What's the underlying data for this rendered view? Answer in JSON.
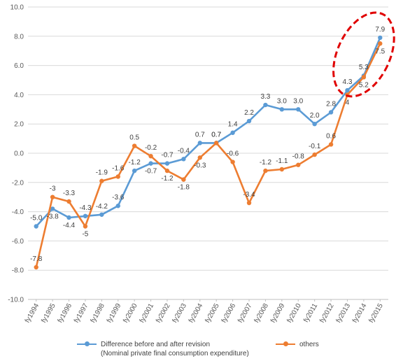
{
  "chart_data": {
    "type": "line",
    "title": "",
    "xlabel": "",
    "ylabel": "",
    "ylim": [
      -10,
      10
    ],
    "y_ticks": [
      "10.0",
      "8.0",
      "6.0",
      "4.0",
      "2.0",
      "0.0",
      "-2.0",
      "-4.0",
      "-6.0",
      "-8.0",
      "-10.0"
    ],
    "grid": true,
    "legend_position": "bottom",
    "categories": [
      "fy1994",
      "fy1995",
      "fy1996",
      "fy1997",
      "fy1998",
      "fy1999",
      "fy2000",
      "fy2001",
      "fy2002",
      "fy2003",
      "fy2004",
      "fy2005",
      "fy2006",
      "fy2007",
      "fy2008",
      "fy2009",
      "fy2010",
      "fy2011",
      "fy2012",
      "fy2013",
      "fy2014",
      "fy2015"
    ],
    "series": [
      {
        "name_line1": "Difference before and after revision",
        "name_line2": "(Nominal private final consumption expenditure)",
        "color": "#5B9BD5",
        "values": [
          -5.0,
          -3.8,
          -4.4,
          -4.3,
          -4.2,
          -3.6,
          -1.2,
          -0.7,
          -0.7,
          -0.4,
          0.7,
          0.7,
          1.4,
          2.2,
          3.3,
          3.0,
          3.0,
          2.0,
          2.8,
          4.3,
          5.3,
          7.9
        ],
        "labels": [
          "-5.0",
          "-3.8",
          "-4.4",
          "-4.3",
          "-4.2",
          "-3.6",
          "-1.2",
          "-0.7",
          "-0.7",
          "-0.4",
          "0.7",
          "0.7",
          "1.4",
          "2.2",
          "3.3",
          "3.0",
          "3.0",
          "2.0",
          "2.8",
          "4.3",
          "5.3",
          "7.9"
        ]
      },
      {
        "name": "others",
        "color": "#ED7D31",
        "values": [
          -7.8,
          -3,
          -3.3,
          -5,
          -1.9,
          -1.6,
          0.5,
          -0.2,
          -1.2,
          -1.8,
          -0.3,
          0.7,
          -0.6,
          -3.4,
          -1.2,
          -1.1,
          -0.8,
          -0.1,
          0.6,
          4,
          5.2,
          7.5
        ],
        "labels": [
          "-7.8",
          "-3",
          "-3.3",
          "-5",
          "-1.9",
          "-1.6",
          "0.5",
          "-0.2",
          "-1.2",
          "-1.8",
          "-0.3",
          "0.7",
          "-0.6",
          "-3.4",
          "-1.2",
          "-1.1",
          "-0.8",
          "-0.1",
          "0.6",
          "4",
          "5.2",
          "7.5"
        ]
      }
    ],
    "highlight": {
      "shape": "dashed-ellipse",
      "color": "#E00000"
    }
  }
}
